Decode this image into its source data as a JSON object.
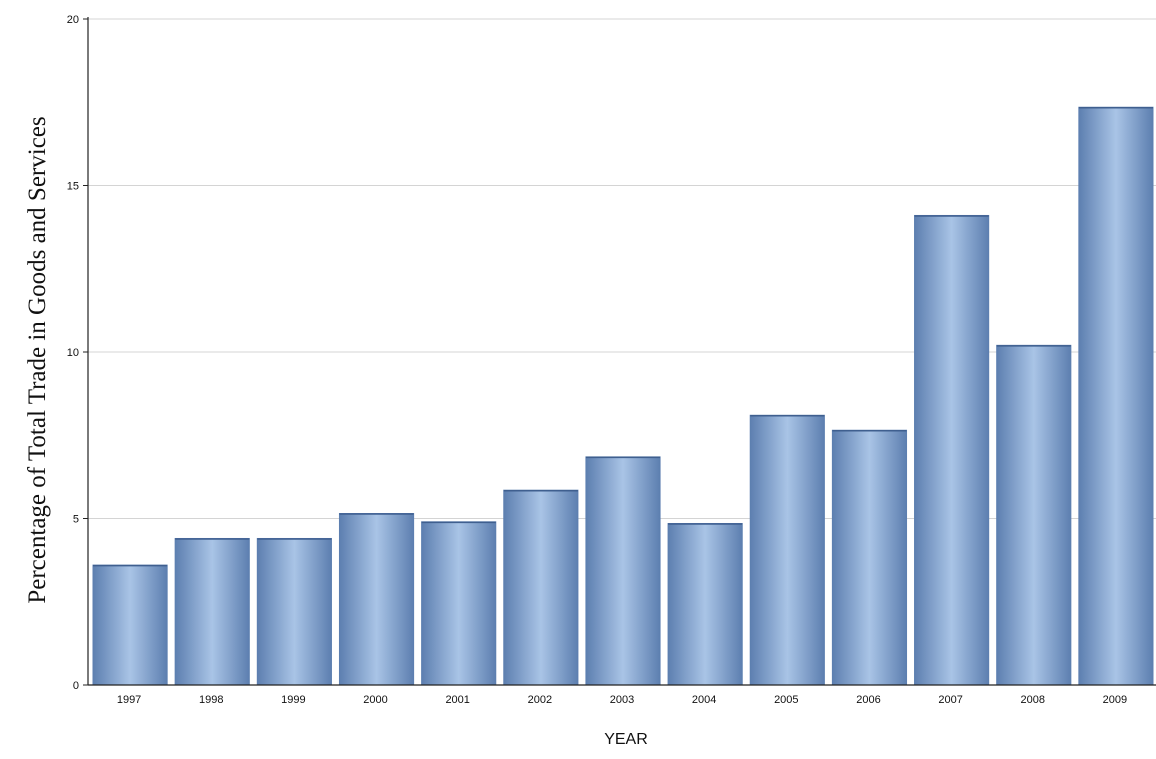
{
  "chart_data": {
    "type": "bar",
    "title": "",
    "xlabel": "YEAR",
    "ylabel": "Percentage of Total Trade in Goods and Services",
    "categories": [
      "1997",
      "1998",
      "1999",
      "2000",
      "2001",
      "2002",
      "2003",
      "2004",
      "2005",
      "2006",
      "2007",
      "2008",
      "2009"
    ],
    "values": [
      3.6,
      4.4,
      4.4,
      5.15,
      4.9,
      5.85,
      6.85,
      4.85,
      8.1,
      7.65,
      14.1,
      10.2,
      17.35
    ],
    "ylim": [
      0,
      20
    ],
    "yticks": [
      "0",
      "5",
      "10",
      "15",
      "20"
    ],
    "grid": true,
    "legend": "none",
    "colors": {
      "bar_edge": "#5d7fb0",
      "bar_center": "#a9c4e6",
      "grid": "#d4d4d4",
      "axis": "#222222",
      "text": "#111111"
    }
  }
}
